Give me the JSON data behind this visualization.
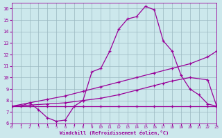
{
  "background_color": "#cce8ec",
  "grid_color": "#9ab8c0",
  "line_color": "#990099",
  "xlim": [
    0,
    23
  ],
  "ylim": [
    6,
    16.5
  ],
  "xticks": [
    0,
    1,
    2,
    3,
    4,
    5,
    6,
    7,
    8,
    9,
    10,
    11,
    12,
    13,
    14,
    15,
    16,
    17,
    18,
    19,
    20,
    21,
    22,
    23
  ],
  "yticks": [
    6,
    7,
    8,
    9,
    10,
    11,
    12,
    13,
    14,
    15,
    16
  ],
  "xlabel": "Windchill (Refroidissement éolien,°C)",
  "line1_x": [
    0,
    1,
    2,
    3,
    4,
    5,
    6,
    7,
    8,
    9,
    10,
    11,
    12,
    13,
    14,
    15,
    16,
    17,
    18,
    19,
    20,
    21,
    22,
    23
  ],
  "line1_y": [
    7.5,
    7.5,
    7.8,
    7.2,
    6.5,
    6.2,
    6.3,
    7.5,
    8.0,
    10.5,
    10.8,
    12.3,
    14.2,
    15.1,
    15.3,
    16.2,
    15.9,
    13.2,
    12.3,
    10.2,
    9.0,
    8.5,
    7.7,
    7.5
  ],
  "line2_x": [
    0,
    2,
    4,
    6,
    8,
    10,
    12,
    14,
    16,
    18,
    20,
    22,
    23
  ],
  "line2_y": [
    7.5,
    7.8,
    8.1,
    8.4,
    8.8,
    9.2,
    9.6,
    10.0,
    10.4,
    10.8,
    11.2,
    11.8,
    12.3
  ],
  "line3_x": [
    0,
    2,
    4,
    6,
    8,
    10,
    12,
    14,
    16,
    17,
    18,
    20,
    22,
    23
  ],
  "line3_y": [
    7.5,
    7.6,
    7.7,
    7.8,
    8.0,
    8.2,
    8.5,
    8.9,
    9.3,
    9.5,
    9.7,
    10.0,
    9.8,
    7.5
  ],
  "line4_x": [
    0,
    2,
    4,
    6,
    8,
    10,
    12,
    14,
    16,
    18,
    20,
    22,
    23
  ],
  "line4_y": [
    7.5,
    7.5,
    7.5,
    7.5,
    7.5,
    7.5,
    7.5,
    7.5,
    7.5,
    7.5,
    7.5,
    7.5,
    7.5
  ]
}
